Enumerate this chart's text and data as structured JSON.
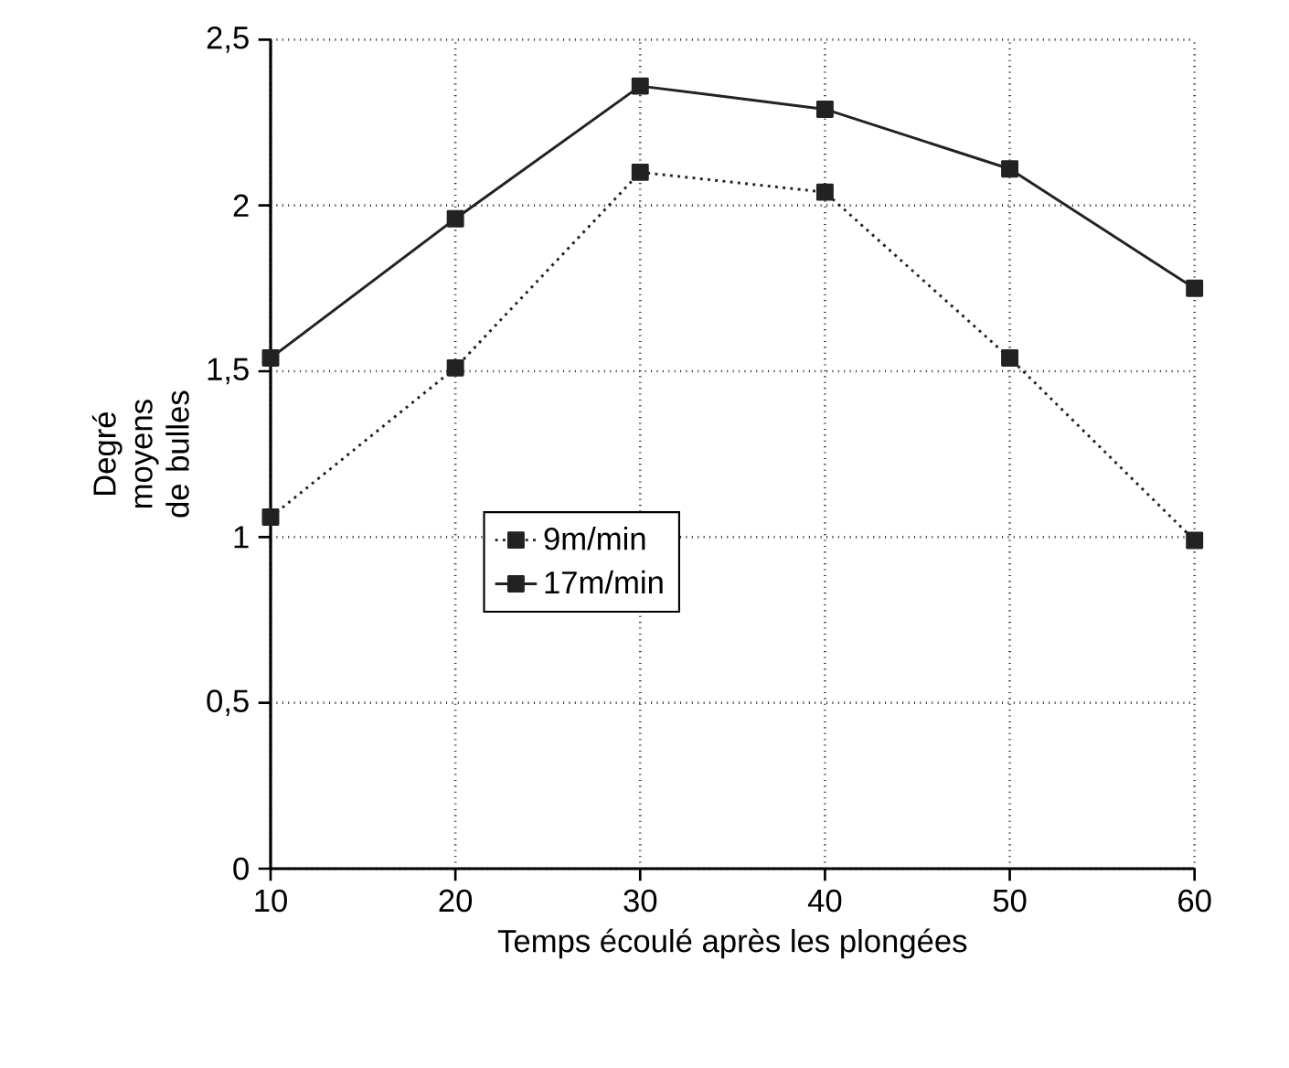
{
  "chart_data": {
    "type": "line",
    "xlabel": "Temps écoulé après les plongées",
    "ylabel": "Degré moyens de bulles",
    "x": [
      10,
      20,
      30,
      40,
      50,
      60
    ],
    "series": [
      {
        "name": "9m/min",
        "color": "#222222",
        "values": [
          1.06,
          1.51,
          2.1,
          2.04,
          1.54,
          0.99
        ],
        "line_style": "dotted"
      },
      {
        "name": "17m/min",
        "color": "#222222",
        "values": [
          1.54,
          1.96,
          2.36,
          2.29,
          2.11,
          1.75
        ],
        "line_style": "solid"
      }
    ],
    "xlim": [
      10,
      60
    ],
    "xticks": [
      10,
      20,
      30,
      40,
      50,
      60
    ],
    "ylim": [
      0,
      2.5
    ],
    "yticks": [
      0,
      {
        "value": 0.5,
        "label": "0,5"
      },
      1,
      {
        "value": 1.5,
        "label": "1,5"
      },
      2,
      {
        "value": 2.5,
        "label": "2,5"
      }
    ],
    "grid": true,
    "legend": "left",
    "marker": "square"
  }
}
